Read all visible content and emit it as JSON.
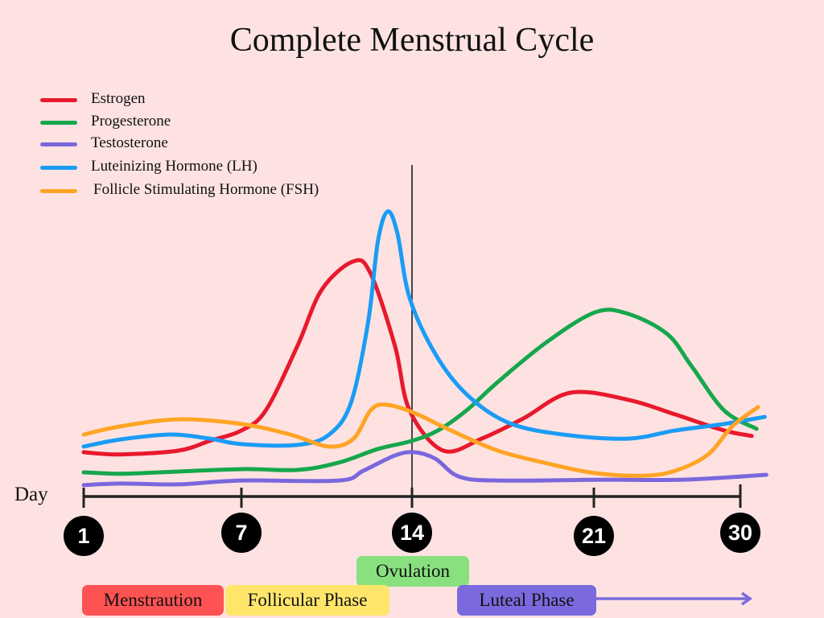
{
  "chart_data": {
    "type": "line",
    "title": "Complete Menstrual Cycle",
    "xlabel": "Day",
    "ylabel": "",
    "x_ticks": [
      1,
      7,
      14,
      21,
      30
    ],
    "x_tick_labels": [
      "1",
      "7",
      "14",
      "21",
      "30"
    ],
    "ylim": [
      0,
      105
    ],
    "grid": false,
    "legend_position": "top-left",
    "marker_line_day": 14,
    "series": [
      {
        "name": "Estrogen",
        "color": "#e8192c",
        "x": [
          1,
          2.4,
          4.6,
          5.8,
          7,
          8.0,
          9.3,
          10.3,
          11.6,
          12.3,
          13.3,
          13.9,
          15.2,
          16.7,
          18.3,
          20.1,
          23.1,
          26.0,
          29.0,
          30.7
        ],
        "y": [
          14.2,
          13.4,
          14.8,
          18.4,
          22.2,
          29.6,
          53.3,
          74,
          84.4,
          79.9,
          53.3,
          29.6,
          14.8,
          19.3,
          26.7,
          36.1,
          33.5,
          28.1,
          22.2,
          20.2
        ]
      },
      {
        "name": "Progesterone",
        "color": "#16a74c",
        "x": [
          1,
          2.4,
          3.9,
          7,
          9.3,
          11.0,
          12.6,
          14,
          15.0,
          16.1,
          17.3,
          19.2,
          21.1,
          23.1,
          25.5,
          27.0,
          29.0,
          31.0
        ],
        "y": [
          6.8,
          6.3,
          6.8,
          8,
          7.7,
          10.4,
          15.4,
          18.4,
          22.2,
          29.6,
          40,
          54.8,
          65.7,
          65.1,
          57.7,
          45.9,
          29.6,
          22.8
        ]
      },
      {
        "name": "Testosterone",
        "color": "#7a67dd",
        "x": [
          1,
          2.4,
          4.6,
          7,
          11.0,
          12.0,
          13.3,
          14.1,
          14.9,
          15.8,
          17.3,
          21.6,
          26.5,
          31.6
        ],
        "y": [
          2.1,
          2.7,
          2.4,
          3.8,
          3.8,
          7.4,
          13,
          14.2,
          11.8,
          5.3,
          3.8,
          4.1,
          4.1,
          5.9
        ]
      },
      {
        "name": "Luteinizing Hormone (LH)",
        "color": "#1a9cf5",
        "x": [
          1,
          2.4,
          4.3,
          5.8,
          7,
          9.3,
          10.6,
          11.5,
          12.2,
          12.6,
          13.0,
          13.4,
          13.9,
          14.9,
          16.1,
          17.7,
          19.8,
          23.1,
          26.0,
          29.0,
          31.5
        ],
        "y": [
          16.3,
          18.9,
          20.7,
          19.2,
          17.2,
          16.9,
          20.7,
          32.5,
          62.1,
          91.7,
          102.7,
          94.7,
          71,
          50.3,
          35.5,
          25.1,
          20.7,
          19.2,
          22.2,
          24.6,
          27.2
        ]
      },
      {
        "name": "Follicle Stimulating Hormone (FSH)",
        "color": "#ffa424",
        "x": [
          1,
          2.4,
          4.6,
          7,
          9.0,
          10.6,
          11.6,
          12.3,
          12.9,
          14,
          15.5,
          17.3,
          19.2,
          21.1,
          24.1,
          26.0,
          28.0,
          29.5,
          31.1
        ],
        "y": [
          20.7,
          23.7,
          26.3,
          24.6,
          20.7,
          16.3,
          19.2,
          29.6,
          31.7,
          29,
          22.2,
          14.8,
          10.1,
          6.5,
          5.6,
          7.4,
          13.3,
          23.7,
          30.8
        ]
      }
    ]
  },
  "phases": [
    {
      "label": "Ovulation",
      "color": "#88e07f"
    },
    {
      "label": "Menstraution",
      "color": "#ff5252"
    },
    {
      "label": "Follicular Phase",
      "color": "#ffe66b"
    },
    {
      "label": "Luteal Phase",
      "color": "#7a6ade"
    }
  ]
}
